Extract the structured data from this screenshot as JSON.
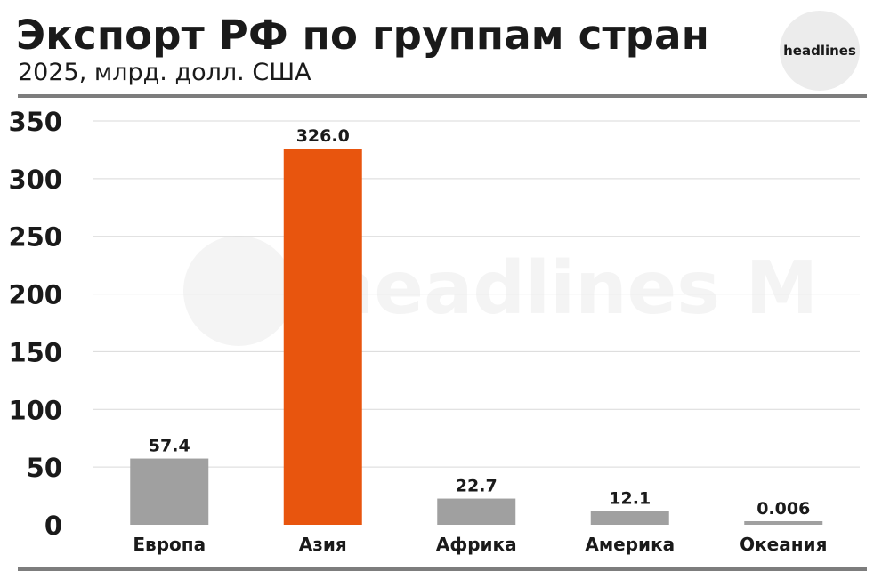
{
  "header": {
    "title": "Экспорт РФ по группам стран",
    "subtitle": "2025, млрд. долл. США"
  },
  "logo": {
    "text": "headlines",
    "watermark": "headlines M"
  },
  "colors": {
    "highlight": "#e8550e",
    "default_bar": "#a0a0a0",
    "grid": "#d9d9d9",
    "text": "#1a1a1a",
    "rule": "#7d7d7d"
  },
  "chart_data": {
    "type": "bar",
    "title": "Экспорт РФ по группам стран",
    "subtitle": "2025, млрд. долл. США",
    "categories": [
      "Европа",
      "Азия",
      "Африка",
      "Америка",
      "Океания"
    ],
    "values": [
      57.4,
      326.0,
      22.7,
      12.1,
      0.006
    ],
    "value_labels": [
      "57.4",
      "326.0",
      "22.7",
      "12.1",
      "0.006"
    ],
    "highlighted_category": "Азия",
    "ylim": [
      0,
      350
    ],
    "yticks": [
      0,
      50,
      100,
      150,
      200,
      250,
      300,
      350
    ],
    "xlabel": "",
    "ylabel": "",
    "grid": true,
    "legend": "none"
  }
}
